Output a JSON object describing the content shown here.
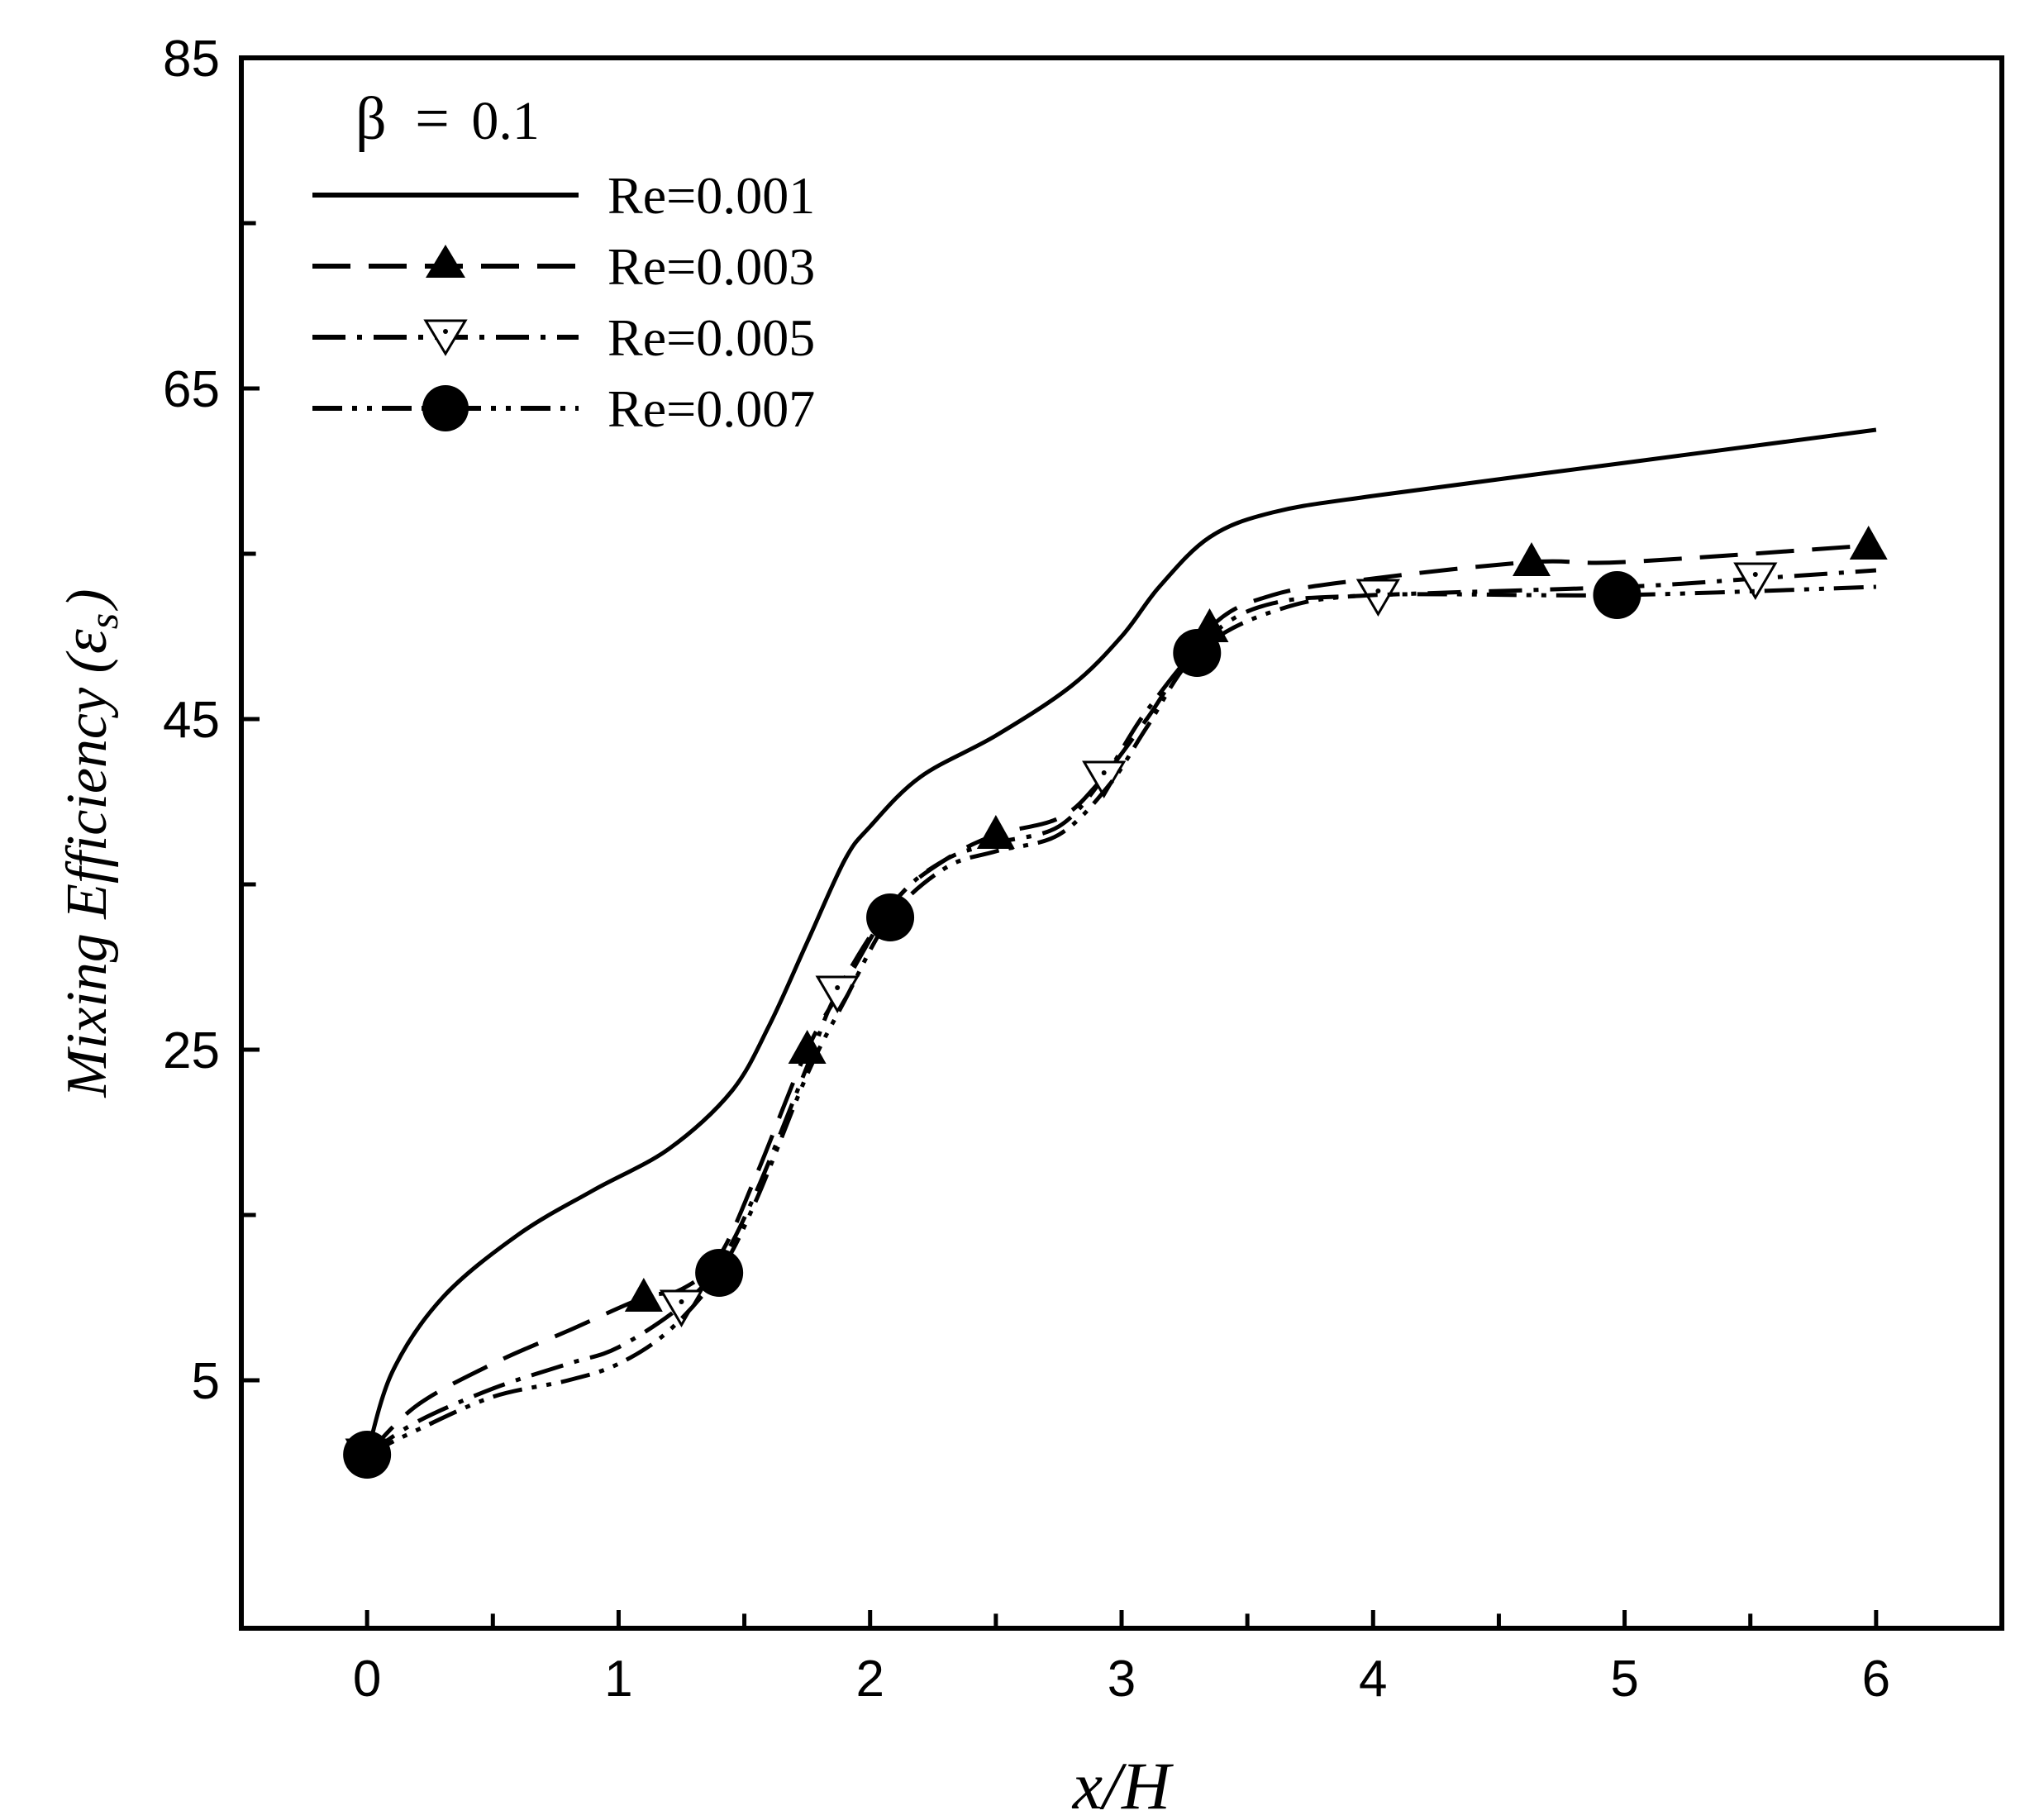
{
  "chart_data": {
    "type": "line",
    "title": "",
    "annotation": {
      "symbol": "β",
      "equals": "=",
      "value": "0.1"
    },
    "xlabel": "x/H",
    "ylabel": {
      "text": "Mixing Efficiency (",
      "symbol": "ε",
      "subscript": "s",
      "close": ")"
    },
    "xlim": [
      -0.5,
      6.5
    ],
    "ylim": [
      -10,
      85
    ],
    "x_ticks": [
      0,
      1,
      2,
      3,
      4,
      5,
      6
    ],
    "x_tick_labels": [
      "0",
      "1",
      "2",
      "3",
      "4",
      "5",
      "6"
    ],
    "y_ticks": [
      5,
      25,
      45,
      65,
      85
    ],
    "y_tick_labels": [
      "5",
      "25",
      "45",
      "65",
      "85"
    ],
    "grid": false,
    "legend_position": "top-left",
    "series": [
      {
        "name": "Re=0.001",
        "line_style": "solid",
        "marker": "none",
        "x": [
          0,
          0.1,
          0.3,
          0.6,
          0.9,
          1.2,
          1.45,
          1.6,
          1.75,
          1.9,
          2.0,
          2.2,
          2.5,
          2.8,
          3.0,
          3.15,
          3.35,
          3.6,
          4.0,
          5.0,
          6.0
        ],
        "y": [
          0.5,
          5.5,
          10.0,
          13.8,
          16.5,
          19.0,
          22.5,
          26.5,
          31.5,
          36.5,
          38.5,
          41.5,
          44.0,
          47.0,
          50.0,
          53.0,
          56.0,
          57.5,
          58.5,
          60.5,
          62.5
        ],
        "markers_x": [],
        "markers_y": []
      },
      {
        "name": "Re=0.003",
        "line_style": "dashed",
        "marker": "filled-triangle-up",
        "x": [
          0,
          0.2,
          0.5,
          0.8,
          1.1,
          1.25,
          1.4,
          1.55,
          1.75,
          1.9,
          2.1,
          2.3,
          2.5,
          2.75,
          2.9,
          3.1,
          3.35,
          3.6,
          4.0,
          4.63,
          5.0,
          5.97
        ],
        "y": [
          0.5,
          3.5,
          6.0,
          8.0,
          10.0,
          10.5,
          12.5,
          17.5,
          25.0,
          29.0,
          34.0,
          36.5,
          38.0,
          39.0,
          41.0,
          45.0,
          50.5,
          52.5,
          53.5,
          54.5,
          54.5,
          55.5
        ],
        "markers_x": [
          0,
          1.1,
          1.75,
          2.5,
          3.35,
          4.63,
          5.97
        ],
        "markers_y": [
          0.5,
          10.0,
          25.0,
          38.0,
          50.5,
          54.5,
          55.5
        ]
      },
      {
        "name": "Re=0.005",
        "line_style": "dash-dot",
        "marker": "open-triangle-down",
        "x": [
          0,
          0.2,
          0.5,
          0.8,
          1.0,
          1.25,
          1.4,
          1.55,
          1.75,
          1.87,
          2.1,
          2.3,
          2.5,
          2.75,
          2.93,
          3.1,
          3.35,
          3.6,
          4.02,
          5.0,
          5.52,
          6.0
        ],
        "y": [
          0.5,
          2.5,
          4.5,
          6.0,
          7.0,
          9.5,
          12.0,
          16.5,
          24.0,
          28.5,
          34.0,
          36.5,
          37.5,
          38.5,
          41.5,
          45.5,
          50.0,
          52.0,
          52.5,
          53.0,
          53.5,
          54.0
        ],
        "markers_x": [
          0,
          1.25,
          1.87,
          2.93,
          4.02,
          5.52
        ],
        "markers_y": [
          0.5,
          9.5,
          28.5,
          41.5,
          52.5,
          53.5
        ]
      },
      {
        "name": "Re=0.007",
        "line_style": "dash-dot-dot",
        "marker": "filled-circle",
        "x": [
          0,
          0.2,
          0.5,
          0.8,
          1.0,
          1.2,
          1.4,
          1.55,
          1.75,
          1.9,
          2.08,
          2.3,
          2.5,
          2.75,
          2.95,
          3.1,
          3.3,
          3.6,
          4.0,
          4.97,
          6.0
        ],
        "y": [
          0.5,
          2.0,
          4.0,
          5.0,
          6.0,
          8.0,
          11.5,
          16.0,
          23.5,
          28.0,
          33.0,
          36.0,
          37.0,
          38.0,
          41.0,
          44.5,
          49.0,
          51.5,
          52.5,
          52.5,
          53.0
        ],
        "markers_x": [
          0,
          1.4,
          2.08,
          3.3,
          4.97
        ],
        "markers_y": [
          0.5,
          11.5,
          33.0,
          49.0,
          52.5
        ]
      }
    ]
  }
}
